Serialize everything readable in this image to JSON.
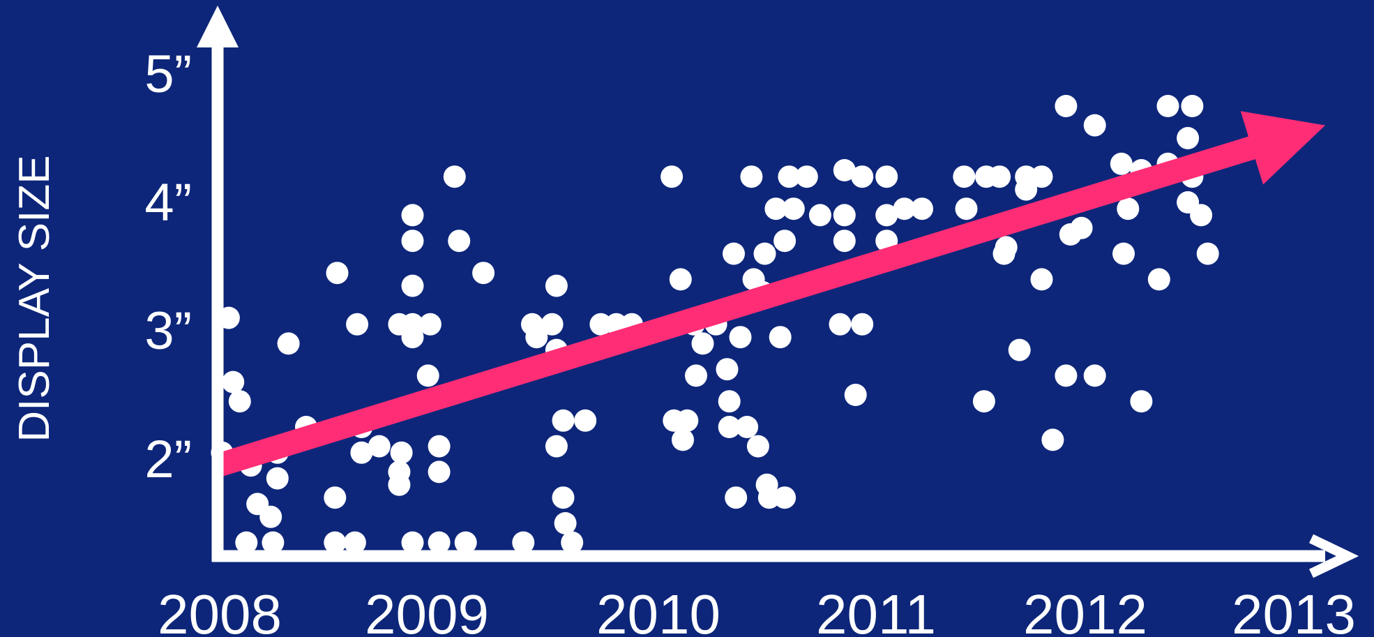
{
  "colors": {
    "background": "#0d267a",
    "axis": "#ffffff",
    "points": "#ffffff",
    "trend_arrow": "#ff2d75"
  },
  "chart_data": {
    "type": "scatter",
    "title": "",
    "xlabel": "",
    "ylabel": "DISPLAY SIZE",
    "x_ticks": [
      "2008",
      "2009",
      "2010",
      "2011",
      "2012",
      "2013"
    ],
    "y_ticks": [
      "2”",
      "3”",
      "4”",
      "5”"
    ],
    "xlim": [
      2008,
      2013
    ],
    "ylim": [
      1.0,
      5.0
    ],
    "grid": false,
    "legend": "none",
    "series": [
      {
        "points": [
          [
            2008.05,
            3.1
          ],
          [
            2008.07,
            2.6
          ],
          [
            2008.1,
            2.45
          ],
          [
            2008.02,
            2.05
          ],
          [
            2008.15,
            1.95
          ],
          [
            2008.18,
            1.65
          ],
          [
            2008.24,
            1.55
          ],
          [
            2008.13,
            1.35
          ],
          [
            2008.25,
            1.35
          ],
          [
            2008.27,
            1.85
          ],
          [
            2008.27,
            2.05
          ],
          [
            2008.32,
            2.9
          ],
          [
            2008.4,
            2.25
          ],
          [
            2008.54,
            3.45
          ],
          [
            2008.53,
            1.7
          ],
          [
            2008.53,
            1.35
          ],
          [
            2008.62,
            1.35
          ],
          [
            2008.63,
            3.05
          ],
          [
            2008.65,
            2.25
          ],
          [
            2008.65,
            2.05
          ],
          [
            2008.73,
            2.1
          ],
          [
            2008.82,
            3.05
          ],
          [
            2008.83,
            2.05
          ],
          [
            2008.82,
            1.9
          ],
          [
            2008.82,
            1.8
          ],
          [
            2008.88,
            3.9
          ],
          [
            2008.88,
            3.7
          ],
          [
            2008.88,
            3.35
          ],
          [
            2008.88,
            3.05
          ],
          [
            2008.88,
            2.95
          ],
          [
            2008.88,
            1.35
          ],
          [
            2008.96,
            3.05
          ],
          [
            2008.95,
            2.65
          ],
          [
            2009.0,
            2.1
          ],
          [
            2009.0,
            1.9
          ],
          [
            2009.0,
            1.35
          ],
          [
            2009.07,
            4.2
          ],
          [
            2009.09,
            3.7
          ],
          [
            2009.12,
            1.35
          ],
          [
            2009.2,
            3.45
          ],
          [
            2009.38,
            1.35
          ],
          [
            2009.42,
            3.05
          ],
          [
            2009.44,
            2.95
          ],
          [
            2009.51,
            3.05
          ],
          [
            2009.53,
            3.35
          ],
          [
            2009.53,
            2.85
          ],
          [
            2009.53,
            2.1
          ],
          [
            2009.56,
            1.7
          ],
          [
            2009.56,
            2.3
          ],
          [
            2009.57,
            1.5
          ],
          [
            2009.6,
            1.35
          ],
          [
            2009.66,
            2.3
          ],
          [
            2009.73,
            3.05
          ],
          [
            2009.8,
            3.05
          ],
          [
            2009.87,
            3.05
          ],
          [
            2010.05,
            4.2
          ],
          [
            2010.09,
            3.4
          ],
          [
            2010.06,
            2.3
          ],
          [
            2010.12,
            2.3
          ],
          [
            2010.1,
            2.15
          ],
          [
            2010.15,
            3.05
          ],
          [
            2010.16,
            2.65
          ],
          [
            2010.19,
            2.9
          ],
          [
            2010.25,
            3.05
          ],
          [
            2010.3,
            2.7
          ],
          [
            2010.31,
            2.45
          ],
          [
            2010.31,
            2.25
          ],
          [
            2010.33,
            3.6
          ],
          [
            2010.34,
            1.7
          ],
          [
            2010.36,
            2.95
          ],
          [
            2010.39,
            2.25
          ],
          [
            2010.41,
            4.2
          ],
          [
            2010.42,
            3.4
          ],
          [
            2010.44,
            2.1
          ],
          [
            2010.46,
            3.3
          ],
          [
            2010.47,
            3.6
          ],
          [
            2010.48,
            1.8
          ],
          [
            2010.49,
            1.7
          ],
          [
            2010.52,
            3.95
          ],
          [
            2010.54,
            2.95
          ],
          [
            2010.56,
            3.7
          ],
          [
            2010.56,
            1.7
          ],
          [
            2010.58,
            4.2
          ],
          [
            2010.6,
            3.95
          ],
          [
            2010.66,
            4.2
          ],
          [
            2010.72,
            3.9
          ],
          [
            2010.83,
            4.25
          ],
          [
            2010.83,
            3.9
          ],
          [
            2010.83,
            3.7
          ],
          [
            2010.81,
            3.05
          ],
          [
            2010.88,
            2.5
          ],
          [
            2010.91,
            4.2
          ],
          [
            2010.91,
            3.05
          ],
          [
            2011.02,
            4.2
          ],
          [
            2011.02,
            3.9
          ],
          [
            2011.02,
            3.7
          ],
          [
            2011.1,
            3.95
          ],
          [
            2011.18,
            3.95
          ],
          [
            2011.37,
            4.2
          ],
          [
            2011.38,
            3.95
          ],
          [
            2011.46,
            2.45
          ],
          [
            2011.47,
            4.2
          ],
          [
            2011.53,
            4.2
          ],
          [
            2011.55,
            3.6
          ],
          [
            2011.56,
            3.65
          ],
          [
            2011.62,
            2.85
          ],
          [
            2011.65,
            4.2
          ],
          [
            2011.65,
            4.1
          ],
          [
            2011.72,
            4.2
          ],
          [
            2011.72,
            3.4
          ],
          [
            2011.77,
            2.15
          ],
          [
            2011.83,
            4.75
          ],
          [
            2011.83,
            2.65
          ],
          [
            2011.85,
            3.75
          ],
          [
            2011.9,
            3.8
          ],
          [
            2011.96,
            4.6
          ],
          [
            2011.96,
            2.65
          ],
          [
            2012.08,
            4.3
          ],
          [
            2012.09,
            3.6
          ],
          [
            2012.11,
            3.95
          ],
          [
            2012.17,
            4.25
          ],
          [
            2012.17,
            2.45
          ],
          [
            2012.25,
            3.4
          ],
          [
            2012.29,
            4.75
          ],
          [
            2012.29,
            4.3
          ],
          [
            2012.4,
            4.75
          ],
          [
            2012.38,
            4.5
          ],
          [
            2012.38,
            4.0
          ],
          [
            2012.4,
            4.2
          ],
          [
            2012.44,
            3.9
          ],
          [
            2012.47,
            3.6
          ]
        ]
      }
    ],
    "trend": {
      "from": [
        2008.0,
        1.95
      ],
      "to": [
        2013.0,
        4.6
      ]
    }
  }
}
